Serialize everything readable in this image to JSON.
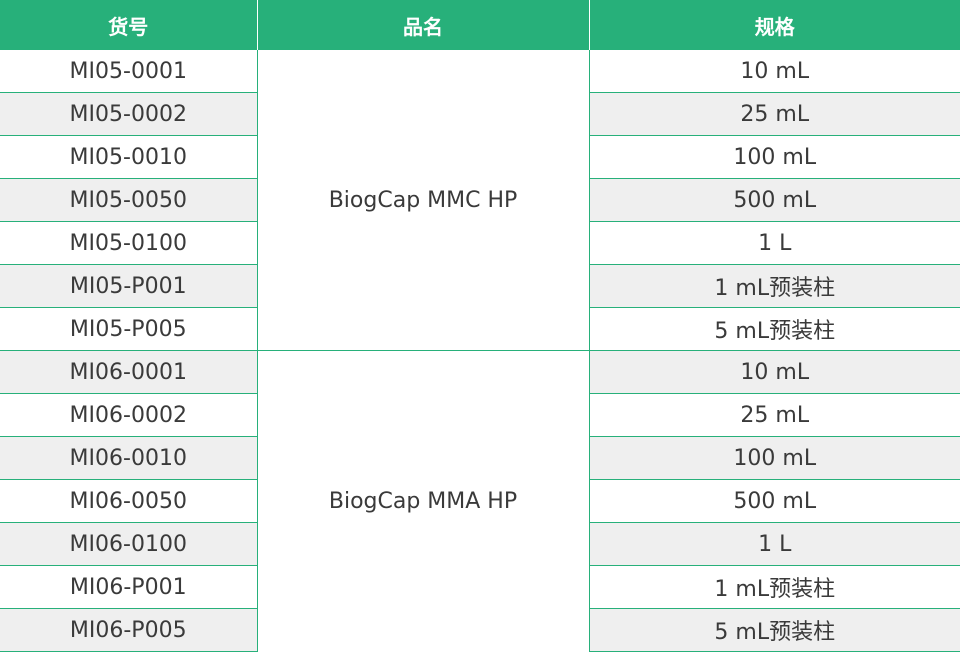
{
  "table": {
    "headers": [
      "货号",
      "品名",
      "规格"
    ],
    "groups": [
      {
        "name": "BiogCap MMC HP",
        "rows": [
          {
            "sku": "MI05-0001",
            "spec": "10 mL"
          },
          {
            "sku": "MI05-0002",
            "spec": "25 mL"
          },
          {
            "sku": "MI05-0010",
            "spec": "100 mL"
          },
          {
            "sku": "MI05-0050",
            "spec": "500 mL"
          },
          {
            "sku": "MI05-0100",
            "spec": "1 L"
          },
          {
            "sku": "MI05-P001",
            "spec": "1 mL预装柱"
          },
          {
            "sku": "MI05-P005",
            "spec": "5 mL预装柱"
          }
        ]
      },
      {
        "name": "BiogCap MMA HP",
        "rows": [
          {
            "sku": "MI06-0001",
            "spec": "10 mL"
          },
          {
            "sku": "MI06-0002",
            "spec": "25 mL"
          },
          {
            "sku": "MI06-0010",
            "spec": "100 mL"
          },
          {
            "sku": "MI06-0050",
            "spec": "500 mL"
          },
          {
            "sku": "MI06-0100",
            "spec": "1 L"
          },
          {
            "sku": "MI06-P001",
            "spec": "1 mL预装柱"
          },
          {
            "sku": "MI06-P005",
            "spec": "5 mL预装柱"
          }
        ]
      }
    ]
  },
  "colors": {
    "header_bg": "#27b07a",
    "header_text": "#ffffff",
    "row_alt_bg": "#efefef",
    "border": "#27b07a",
    "text": "#3a3a3a"
  }
}
